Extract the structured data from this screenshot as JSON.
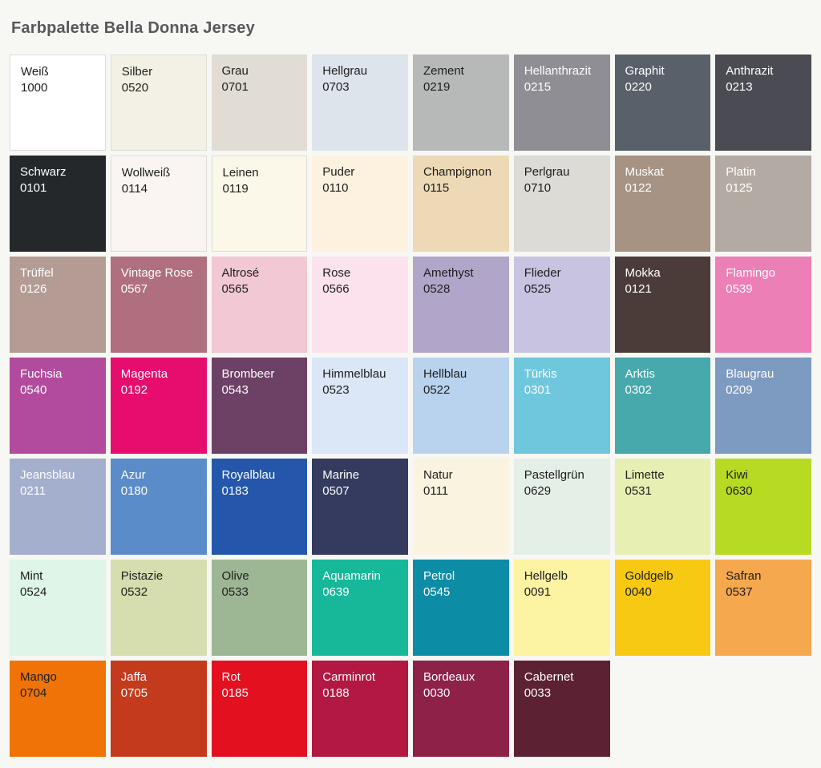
{
  "page": {
    "title": "Farbpalette Bella Donna Jersey",
    "background": "#f7f7f4",
    "title_color": "#58585a"
  },
  "palette": {
    "columns": 8,
    "dark_text": "#1d1d1b",
    "light_text": "#ffffff",
    "border_color": "#dedcd6",
    "swatches": [
      {
        "name": "Weiß",
        "code": "1000",
        "bg": "#ffffff",
        "text": "dark",
        "border": true
      },
      {
        "name": "Silber",
        "code": "0520",
        "bg": "#f3f0e5",
        "text": "dark",
        "border": true
      },
      {
        "name": "Grau",
        "code": "0701",
        "bg": "#e1dcd4",
        "text": "dark"
      },
      {
        "name": "Hellgrau",
        "code": "0703",
        "bg": "#dde4ec",
        "text": "dark"
      },
      {
        "name": "Zement",
        "code": "0219",
        "bg": "#b6b9b8",
        "text": "dark"
      },
      {
        "name": "Hellanthrazit",
        "code": "0215",
        "bg": "#8f8e94",
        "text": "light"
      },
      {
        "name": "Graphit",
        "code": "0220",
        "bg": "#596069",
        "text": "light"
      },
      {
        "name": "Anthrazit",
        "code": "0213",
        "bg": "#4b4b54",
        "text": "light"
      },
      {
        "name": "Schwarz",
        "code": "0101",
        "bg": "#24282b",
        "text": "light"
      },
      {
        "name": "Wollweiß",
        "code": "0114",
        "bg": "#faf5f3",
        "text": "dark",
        "border": true
      },
      {
        "name": "Leinen",
        "code": "0119",
        "bg": "#fbf7e9",
        "text": "dark",
        "border": true
      },
      {
        "name": "Puder",
        "code": "0110",
        "bg": "#fdf1e0",
        "text": "dark"
      },
      {
        "name": "Champignon",
        "code": "0115",
        "bg": "#edd9b5",
        "text": "dark"
      },
      {
        "name": "Perlgrau",
        "code": "0710",
        "bg": "#dcdbd6",
        "text": "dark"
      },
      {
        "name": "Muskat",
        "code": "0122",
        "bg": "#a69384",
        "text": "light"
      },
      {
        "name": "Platin",
        "code": "0125",
        "bg": "#b3aba3",
        "text": "light"
      },
      {
        "name": "Trüffel",
        "code": "0126",
        "bg": "#b49b94",
        "text": "light"
      },
      {
        "name": "Vintage Rose",
        "code": "0567",
        "bg": "#b06f7e",
        "text": "light"
      },
      {
        "name": "Altrosé",
        "code": "0565",
        "bg": "#f3c8d5",
        "text": "dark"
      },
      {
        "name": "Rose",
        "code": "0566",
        "bg": "#fce2ed",
        "text": "dark"
      },
      {
        "name": "Amethyst",
        "code": "0528",
        "bg": "#b1a6c9",
        "text": "dark"
      },
      {
        "name": "Flieder",
        "code": "0525",
        "bg": "#c8c3e0",
        "text": "dark"
      },
      {
        "name": "Mokka",
        "code": "0121",
        "bg": "#4b3c39",
        "text": "light"
      },
      {
        "name": "Flamingo",
        "code": "0539",
        "bg": "#ec7fb6",
        "text": "light"
      },
      {
        "name": "Fuchsia",
        "code": "0540",
        "bg": "#b24b9e",
        "text": "light"
      },
      {
        "name": "Magenta",
        "code": "0192",
        "bg": "#e60d6f",
        "text": "light"
      },
      {
        "name": "Brombeer",
        "code": "0543",
        "bg": "#6d4066",
        "text": "light"
      },
      {
        "name": "Himmelblau",
        "code": "0523",
        "bg": "#dbe6f6",
        "text": "dark"
      },
      {
        "name": "Hellblau",
        "code": "0522",
        "bg": "#b9d3ee",
        "text": "dark"
      },
      {
        "name": "Türkis",
        "code": "0301",
        "bg": "#6fc7de",
        "text": "light"
      },
      {
        "name": "Arktis",
        "code": "0302",
        "bg": "#47a9ab",
        "text": "light"
      },
      {
        "name": "Blaugrau",
        "code": "0209",
        "bg": "#7d9ac0",
        "text": "light"
      },
      {
        "name": "Jeansblau",
        "code": "0211",
        "bg": "#a4afce",
        "text": "light"
      },
      {
        "name": "Azur",
        "code": "0180",
        "bg": "#5b8cca",
        "text": "light"
      },
      {
        "name": "Royalblau",
        "code": "0183",
        "bg": "#2457ab",
        "text": "light"
      },
      {
        "name": "Marine",
        "code": "0507",
        "bg": "#343b5e",
        "text": "light"
      },
      {
        "name": "Natur",
        "code": "0111",
        "bg": "#faf3df",
        "text": "dark"
      },
      {
        "name": "Pastellgrün",
        "code": "0629",
        "bg": "#e4efe8",
        "text": "dark"
      },
      {
        "name": "Limette",
        "code": "0531",
        "bg": "#e7efb2",
        "text": "dark"
      },
      {
        "name": "Kiwi",
        "code": "0630",
        "bg": "#b7da22",
        "text": "dark"
      },
      {
        "name": "Mint",
        "code": "0524",
        "bg": "#def5e7",
        "text": "dark"
      },
      {
        "name": "Pistazie",
        "code": "0532",
        "bg": "#d6deb0",
        "text": "dark"
      },
      {
        "name": "Olive",
        "code": "0533",
        "bg": "#9db794",
        "text": "dark"
      },
      {
        "name": "Aquamarin",
        "code": "0639",
        "bg": "#17b89a",
        "text": "light"
      },
      {
        "name": "Petrol",
        "code": "0545",
        "bg": "#0d8ca6",
        "text": "light"
      },
      {
        "name": "Hellgelb",
        "code": "0091",
        "bg": "#fcf3a3",
        "text": "dark"
      },
      {
        "name": "Goldgelb",
        "code": "0040",
        "bg": "#f8c913",
        "text": "dark"
      },
      {
        "name": "Safran",
        "code": "0537",
        "bg": "#f6a84e",
        "text": "dark"
      },
      {
        "name": "Mango",
        "code": "0704",
        "bg": "#ef7306",
        "text": "dark"
      },
      {
        "name": "Jaffa",
        "code": "0705",
        "bg": "#c33a1d",
        "text": "light"
      },
      {
        "name": "Rot",
        "code": "0185",
        "bg": "#e3101f",
        "text": "light"
      },
      {
        "name": "Carminrot",
        "code": "0188",
        "bg": "#b31843",
        "text": "light"
      },
      {
        "name": "Bordeaux",
        "code": "0030",
        "bg": "#8d2148",
        "text": "light"
      },
      {
        "name": "Cabernet",
        "code": "0033",
        "bg": "#5d2134",
        "text": "light"
      }
    ]
  }
}
